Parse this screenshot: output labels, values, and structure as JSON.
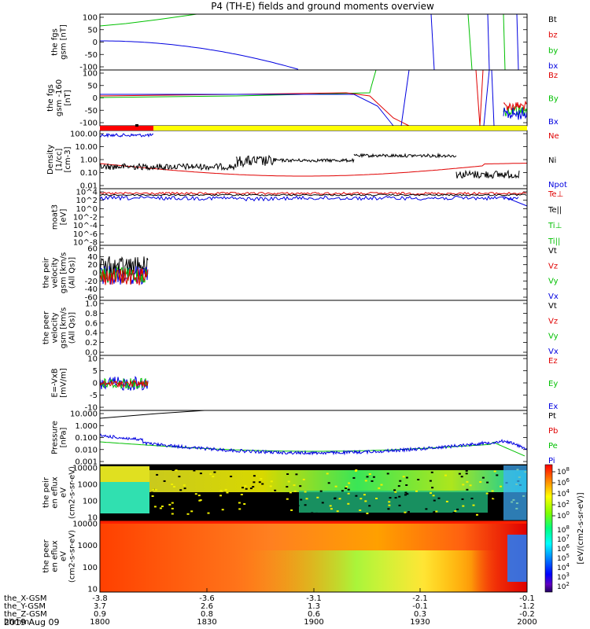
{
  "colors": {
    "black": "#000000",
    "red": "#e00000",
    "green": "#00c000",
    "blue": "#0000e0",
    "bar_red": "#ff0000",
    "bar_yellow": "#ffff00"
  },
  "title": "P4 (TH-E) fields and ground moments overview",
  "footer": {
    "rows": [
      {
        "label": "the_X-GSM",
        "values": [
          "-3.8",
          "-3.6",
          "-3.1",
          "-2.1",
          "-0.1"
        ]
      },
      {
        "label": "the_Y-GSM",
        "values": [
          "3.7",
          "2.6",
          "1.3",
          "-0.1",
          "-1.2"
        ]
      },
      {
        "label": "the_Z-GSM",
        "values": [
          "0.9",
          "0.8",
          "0.6",
          "0.3",
          "-0.2"
        ]
      },
      {
        "label": "hhmm",
        "values": [
          "1800",
          "1830",
          "1900",
          "1930",
          "2000"
        ]
      }
    ],
    "date": "2019 Aug 09"
  },
  "colorbar": {
    "label": "[eV/(cm2-s-sr-eV)]",
    "ticks_top": [
      "10^8",
      "10^6",
      "10^4",
      "10^2",
      "10^0"
    ],
    "ticks_bottom": [
      "10^8",
      "10^7",
      "10^6",
      "10^5",
      "10^4",
      "10^3",
      "10^2"
    ],
    "colors": [
      "#ff0000",
      "#ff8000",
      "#ffff00",
      "#80ff00",
      "#00ff80",
      "#00ffff",
      "#0080ff",
      "#0000ff",
      "#6000c0",
      "#200060"
    ]
  },
  "chart_data": {
    "type": "line",
    "x_ticks": [
      "1800",
      "1830",
      "1900",
      "1930",
      "2000"
    ],
    "x_range": [
      "1800",
      "2000"
    ],
    "panels": [
      {
        "ylabel": "the fgs gsm [nT]",
        "yticks": [
          "100",
          "50",
          "0",
          "-50",
          "-100"
        ],
        "ylim": [
          -100,
          100
        ],
        "legend": [
          {
            "name": "Bt",
            "color": "black"
          },
          {
            "name": "bz",
            "color": "red"
          },
          {
            "name": "by",
            "color": "green"
          },
          {
            "name": "bx",
            "color": "blue"
          }
        ]
      },
      {
        "ylabel": "the fgs gsm -160 [nT]",
        "yticks": [
          "100",
          "50",
          "0",
          "-50",
          "-100"
        ],
        "ylim": [
          -120,
          120
        ],
        "legend": [
          {
            "name": "Bz",
            "color": "red"
          },
          {
            "name": "By",
            "color": "green"
          },
          {
            "name": "Bx",
            "color": "blue"
          }
        ]
      },
      {
        "ylabel": "Density [1/cc] [cm-3]",
        "yticks": [
          "100.00",
          "10.00",
          "1.00",
          "0.10",
          "0.01"
        ],
        "ylim": [
          0.01,
          100
        ],
        "log": true,
        "legend": [
          {
            "name": "Ne",
            "color": "red"
          },
          {
            "name": "Ni",
            "color": "black"
          },
          {
            "name": "Npot",
            "color": "blue"
          }
        ]
      },
      {
        "ylabel": "moat3 [eV]",
        "yticks": [
          "10^4",
          "10^2",
          "10^0",
          "10^-2",
          "10^-4",
          "10^-6",
          "10^-8"
        ],
        "log": true,
        "legend": [
          {
            "name": "Te⊥",
            "color": "red"
          },
          {
            "name": "Te||",
            "color": "black"
          },
          {
            "name": "Ti⊥",
            "color": "green"
          },
          {
            "name": "Ti||",
            "color": "green"
          }
        ]
      },
      {
        "ylabel": "the peir velocity gsm [km/s (All Qs)]",
        "yticks": [
          "60",
          "40",
          "20",
          "0",
          "-20",
          "-40",
          "-60"
        ],
        "ylim": [
          -60,
          60
        ],
        "legend": [
          {
            "name": "Vt",
            "color": "black"
          },
          {
            "name": "Vz",
            "color": "red"
          },
          {
            "name": "Vy",
            "color": "green"
          },
          {
            "name": "Vx",
            "color": "blue"
          }
        ]
      },
      {
        "ylabel": "the peer velocity gsm [km/s (All Qs)]",
        "yticks": [
          "1.0",
          "0.8",
          "0.6",
          "0.4",
          "0.2",
          "0.0"
        ],
        "ylim": [
          0,
          1
        ],
        "legend": [
          {
            "name": "Vt",
            "color": "black"
          },
          {
            "name": "Vz",
            "color": "red"
          },
          {
            "name": "Vy",
            "color": "green"
          },
          {
            "name": "Vx",
            "color": "blue"
          }
        ]
      },
      {
        "ylabel": "E=-VxB [mV/m]",
        "yticks": [
          "10",
          "5",
          "0",
          "-5",
          "-10"
        ],
        "ylim": [
          -10,
          10
        ],
        "legend": [
          {
            "name": "Ez",
            "color": "red"
          },
          {
            "name": "Ey",
            "color": "green"
          },
          {
            "name": "Ex",
            "color": "blue"
          }
        ]
      },
      {
        "ylabel": "Pressure [nPa]",
        "yticks": [
          "10.000",
          "1.000",
          "0.100",
          "0.010",
          "0.001"
        ],
        "ylim": [
          0.001,
          10
        ],
        "log": true,
        "legend": [
          {
            "name": "Pt",
            "color": "black"
          },
          {
            "name": "Pb",
            "color": "red"
          },
          {
            "name": "Pe",
            "color": "green"
          },
          {
            "name": "Pi",
            "color": "blue"
          }
        ]
      },
      {
        "ylabel": "the peir en eflux eV (cm2-s-sr-eV)",
        "yticks": [
          "10000",
          "1000",
          "100",
          "10"
        ],
        "log": true,
        "type": "heatmap"
      },
      {
        "ylabel": "the peer en eflux eV (cm2-s-sr-eV)",
        "yticks": [
          "10000",
          "1000",
          "100",
          "10"
        ],
        "log": true,
        "type": "heatmap"
      }
    ]
  }
}
